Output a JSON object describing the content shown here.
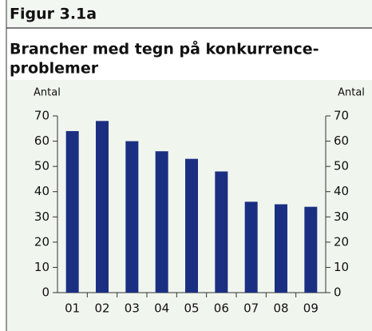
{
  "chart_data": {
    "type": "bar",
    "figure_label": "Figur 3.1a",
    "title": [
      "Brancher med tegn på konkurrence-",
      "problemer"
    ],
    "y_label": "Antal",
    "y2_label": "Antal",
    "categories": [
      "01",
      "02",
      "03",
      "04",
      "05",
      "06",
      "07",
      "08",
      "09"
    ],
    "values": [
      64,
      68,
      60,
      56,
      53,
      48,
      36,
      35,
      34
    ],
    "color": "#1b2f82",
    "ylim": [
      0,
      70
    ],
    "yticks": [
      0,
      10,
      20,
      30,
      40,
      50,
      60,
      70
    ],
    "y2lim": [
      0,
      70
    ],
    "y2ticks": [
      0,
      10,
      20,
      30,
      40,
      50,
      60,
      70
    ],
    "grid": false
  }
}
